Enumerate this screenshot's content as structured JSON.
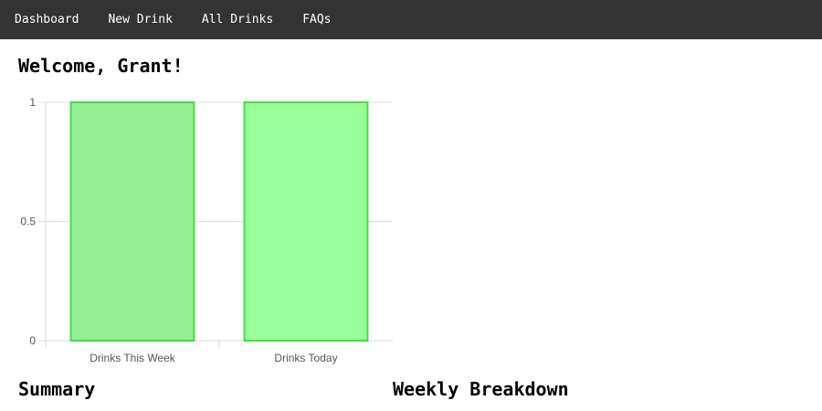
{
  "nav": {
    "items": [
      {
        "label": "Dashboard"
      },
      {
        "label": "New Drink"
      },
      {
        "label": "All Drinks"
      },
      {
        "label": "FAQs"
      }
    ]
  },
  "main": {
    "welcome": "Welcome, Grant!",
    "summary_heading": "Summary",
    "weekly_heading": "Weekly Breakdown"
  },
  "colors": {
    "nav_bg": "#333333",
    "bar_fill_1": "#94ef94",
    "bar_fill_2": "#99ff99",
    "bar_stroke": "#44dd44",
    "grid": "#e0e0e0"
  },
  "chart_data": {
    "type": "bar",
    "categories": [
      "Drinks This Week",
      "Drinks Today"
    ],
    "values": [
      1,
      1
    ],
    "yticks": [
      "1",
      "0.5",
      "0"
    ],
    "ylim": [
      0,
      1
    ],
    "grid": true,
    "title": "",
    "xlabel": "",
    "ylabel": ""
  }
}
